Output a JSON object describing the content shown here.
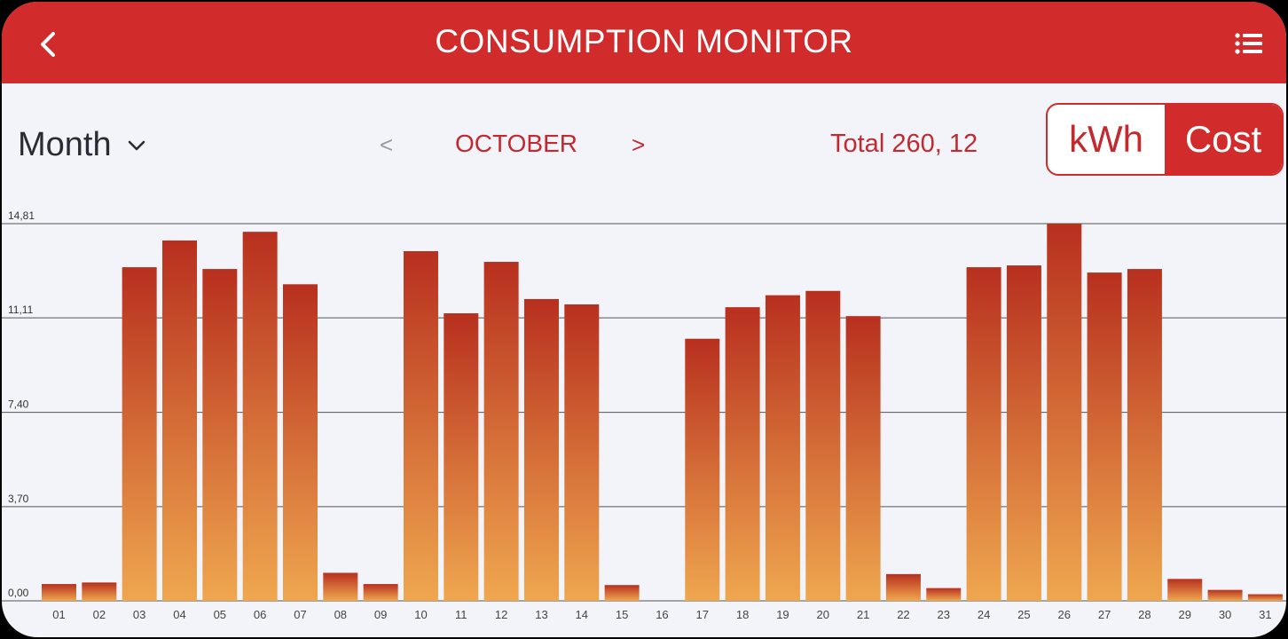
{
  "header": {
    "title": "CONSUMPTION MONITOR",
    "back_icon": "chevron-left-icon",
    "menu_icon": "list-icon"
  },
  "controls": {
    "period_label": "Month",
    "prev_label": "<",
    "month_label": "OCTOBER",
    "next_label": ">",
    "total_label": "Total 260, 12",
    "toggle": {
      "kwh_label": "kWh",
      "cost_label": "Cost",
      "selected": "Cost"
    }
  },
  "colors": {
    "accent": "#d12b2b",
    "bar_top": "#b8301f",
    "bar_bottom": "#efa74f"
  },
  "chart_data": {
    "type": "bar",
    "title": "",
    "xlabel": "",
    "ylabel": "",
    "ylim": [
      0,
      14.81
    ],
    "yticks": [
      "0,00",
      "3,70",
      "7,40",
      "11,11",
      "14,81"
    ],
    "ytick_values": [
      0,
      3.7,
      7.4,
      11.11,
      14.81
    ],
    "grid": true,
    "categories": [
      "01",
      "02",
      "03",
      "04",
      "05",
      "06",
      "07",
      "08",
      "09",
      "10",
      "11",
      "12",
      "13",
      "14",
      "15",
      "16",
      "17",
      "18",
      "19",
      "20",
      "21",
      "22",
      "23",
      "24",
      "25",
      "26",
      "27",
      "28",
      "29",
      "30",
      "31"
    ],
    "values": [
      0.66,
      0.72,
      13.1,
      14.15,
      13.03,
      14.49,
      12.43,
      1.1,
      0.66,
      13.73,
      11.29,
      13.31,
      11.85,
      11.64,
      0.62,
      0,
      10.29,
      11.53,
      12.0,
      12.17,
      11.18,
      1.05,
      0.5,
      13.1,
      13.17,
      14.81,
      12.89,
      13.03,
      0.86,
      0.43,
      0.26
    ]
  }
}
